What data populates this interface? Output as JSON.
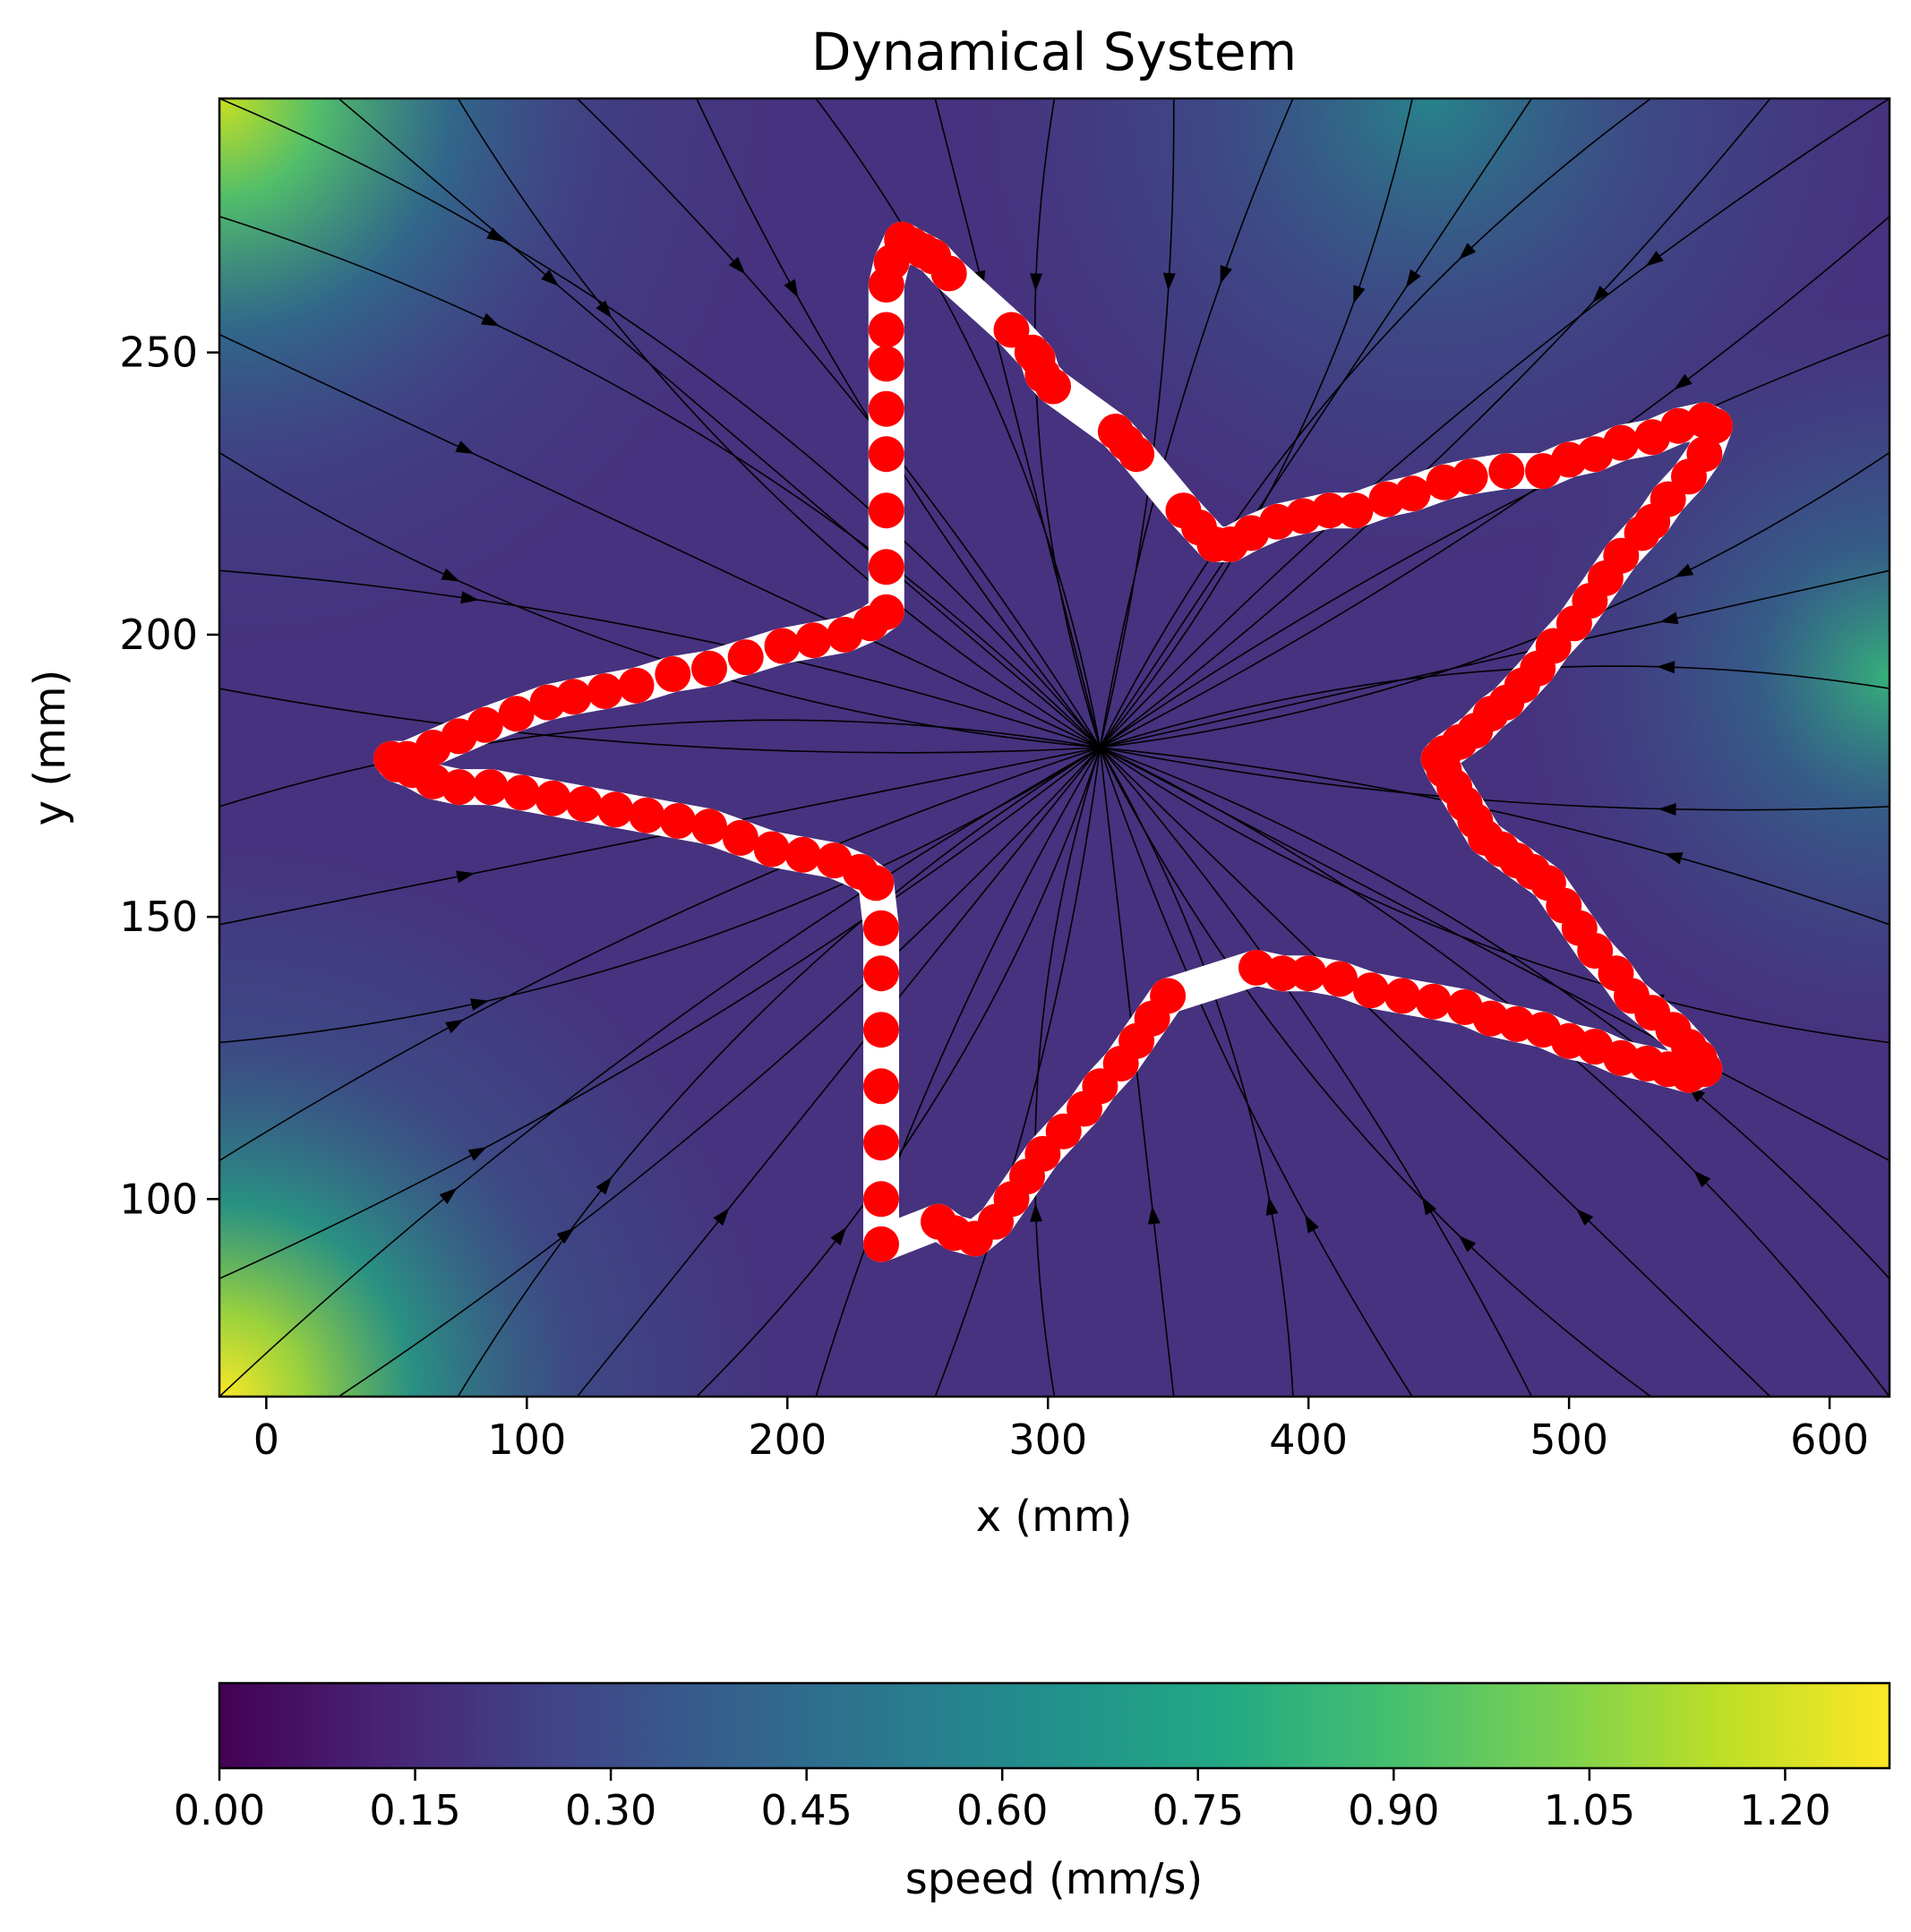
{
  "chart_data": {
    "type": "contour",
    "title": "Dynamical System",
    "xlabel": "x (mm)",
    "ylabel": "y (mm)",
    "xlim": [
      -18,
      623
    ],
    "ylim": [
      65,
      295
    ],
    "x_ticks": [
      0,
      100,
      200,
      300,
      400,
      500,
      600
    ],
    "y_ticks": [
      100,
      150,
      200,
      250
    ],
    "grid": false,
    "attractor": [
      320,
      180
    ],
    "speed_field": {
      "description_points": [
        {
          "x": -18,
          "y": 295,
          "speed": 1.1
        },
        {
          "x": -18,
          "y": 65,
          "speed": 1.25
        },
        {
          "x": 623,
          "y": 190,
          "speed": 0.75
        },
        {
          "x": 500,
          "y": 295,
          "speed": 0.6
        }
      ]
    },
    "trajectory": {
      "name": "demonstration",
      "points": [
        [
          244,
          270
        ],
        [
          248,
          269
        ],
        [
          252,
          268
        ],
        [
          256,
          267
        ],
        [
          262,
          264
        ],
        [
          286,
          254
        ],
        [
          294,
          250
        ],
        [
          296,
          249
        ],
        [
          298,
          246
        ],
        [
          302,
          244
        ],
        [
          326,
          236
        ],
        [
          330,
          234
        ],
        [
          334,
          232
        ],
        [
          352,
          222
        ],
        [
          358,
          219
        ],
        [
          364,
          216
        ],
        [
          370,
          216
        ],
        [
          378,
          218
        ],
        [
          388,
          220
        ],
        [
          398,
          221
        ],
        [
          408,
          222
        ],
        [
          418,
          222
        ],
        [
          430,
          224
        ],
        [
          440,
          225
        ],
        [
          452,
          227
        ],
        [
          462,
          228
        ],
        [
          476,
          229
        ],
        [
          490,
          229
        ],
        [
          500,
          231
        ],
        [
          510,
          232
        ],
        [
          520,
          234
        ],
        [
          532,
          235
        ],
        [
          542,
          237
        ],
        [
          552,
          238
        ],
        [
          556,
          237
        ],
        [
          552,
          232
        ],
        [
          546,
          228
        ],
        [
          538,
          224
        ],
        [
          532,
          220
        ],
        [
          528,
          218
        ],
        [
          520,
          214
        ],
        [
          514,
          210
        ],
        [
          508,
          206
        ],
        [
          502,
          202
        ],
        [
          494,
          198
        ],
        [
          488,
          194
        ],
        [
          482,
          191
        ],
        [
          476,
          188
        ],
        [
          470,
          186
        ],
        [
          464,
          183
        ],
        [
          458,
          181
        ],
        [
          452,
          179
        ],
        [
          450,
          178
        ],
        [
          452,
          176
        ],
        [
          456,
          173
        ],
        [
          460,
          170
        ],
        [
          464,
          167
        ],
        [
          468,
          164
        ],
        [
          474,
          162
        ],
        [
          480,
          160
        ],
        [
          486,
          158
        ],
        [
          492,
          156
        ],
        [
          498,
          152
        ],
        [
          504,
          148
        ],
        [
          510,
          144
        ],
        [
          518,
          140
        ],
        [
          524,
          136
        ],
        [
          532,
          133
        ],
        [
          540,
          130
        ],
        [
          546,
          127
        ],
        [
          550,
          125
        ],
        [
          552,
          123
        ],
        [
          546,
          122
        ],
        [
          538,
          123
        ],
        [
          530,
          124
        ],
        [
          520,
          125
        ],
        [
          510,
          127
        ],
        [
          500,
          128
        ],
        [
          490,
          130
        ],
        [
          480,
          131
        ],
        [
          470,
          132
        ],
        [
          460,
          134
        ],
        [
          448,
          135
        ],
        [
          436,
          136
        ],
        [
          424,
          137
        ],
        [
          412,
          139
        ],
        [
          400,
          140
        ],
        [
          390,
          140
        ],
        [
          380,
          141
        ],
        [
          346,
          136
        ],
        [
          340,
          132
        ],
        [
          334,
          128
        ],
        [
          328,
          124
        ],
        [
          320,
          120
        ],
        [
          314,
          116
        ],
        [
          306,
          112
        ],
        [
          298,
          108
        ],
        [
          292,
          104
        ],
        [
          286,
          100
        ],
        [
          280,
          96
        ],
        [
          272,
          93
        ],
        [
          264,
          94
        ],
        [
          258,
          96
        ],
        [
          236,
          92
        ],
        [
          236,
          100
        ],
        [
          236,
          110
        ],
        [
          236,
          120
        ],
        [
          236,
          130
        ],
        [
          236,
          140
        ],
        [
          236,
          148
        ],
        [
          234,
          156
        ],
        [
          228,
          158
        ],
        [
          218,
          160
        ],
        [
          206,
          161
        ],
        [
          194,
          162
        ],
        [
          182,
          164
        ],
        [
          170,
          166
        ],
        [
          158,
          167
        ],
        [
          146,
          168
        ],
        [
          134,
          169
        ],
        [
          122,
          170
        ],
        [
          110,
          171
        ],
        [
          98,
          172
        ],
        [
          86,
          173
        ],
        [
          74,
          173
        ],
        [
          64,
          174
        ],
        [
          56,
          176
        ],
        [
          50,
          177
        ],
        [
          48,
          178
        ],
        [
          54,
          178
        ],
        [
          64,
          180
        ],
        [
          74,
          182
        ],
        [
          84,
          184
        ],
        [
          96,
          186
        ],
        [
          108,
          188
        ],
        [
          118,
          189
        ],
        [
          130,
          190
        ],
        [
          142,
          191
        ],
        [
          156,
          193
        ],
        [
          170,
          194
        ],
        [
          184,
          196
        ],
        [
          198,
          198
        ],
        [
          210,
          199
        ],
        [
          222,
          200
        ],
        [
          232,
          202
        ],
        [
          238,
          204
        ],
        [
          238,
          212
        ],
        [
          238,
          222
        ],
        [
          238,
          232
        ],
        [
          238,
          240
        ],
        [
          238,
          248
        ],
        [
          238,
          254
        ],
        [
          238,
          262
        ],
        [
          240,
          266
        ],
        [
          244,
          270
        ]
      ]
    },
    "colorbar": {
      "label": "speed (mm/s)",
      "min": 0.0,
      "max": 1.28,
      "ticks": [
        "0.00",
        "0.15",
        "0.30",
        "0.45",
        "0.60",
        "0.75",
        "0.90",
        "1.05",
        "1.20"
      ],
      "colormap": "viridis"
    },
    "colors": {
      "trajectory_points": "#ff0000",
      "trajectory_band": "#ffffff",
      "streamlines": "#000000"
    }
  }
}
